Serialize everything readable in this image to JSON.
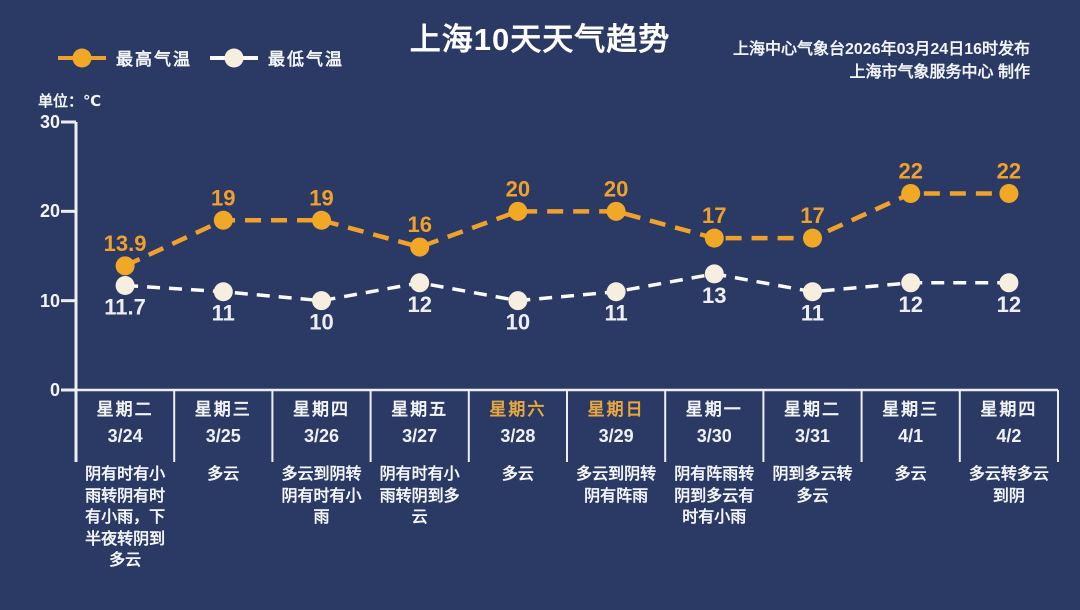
{
  "page": {
    "background": "#2B3A64",
    "title": "上海10天天气趋势",
    "source_line1": "上海中心气象台2026年03月24日16时发布",
    "source_line2": "上海市气象服务中心  制作",
    "unit_label": "单位：℃"
  },
  "legend": {
    "items": [
      {
        "label": "最高气温",
        "line_color": "#F0A12B",
        "marker_color": "#F2A827"
      },
      {
        "label": "最低气温",
        "line_color": "#FAFBFD",
        "marker_color": "#F6EEDE"
      }
    ]
  },
  "chart_data": {
    "type": "line",
    "title": "上海10天天气趋势",
    "categories": [
      "3/24",
      "3/25",
      "3/26",
      "3/27",
      "3/28",
      "3/29",
      "3/30",
      "3/31",
      "4/1",
      "4/2"
    ],
    "series": [
      {
        "name": "最高气温",
        "values": [
          13.9,
          19,
          19,
          16,
          20,
          20,
          17,
          17,
          22,
          22
        ],
        "labels": [
          "13.9",
          "19",
          "19",
          "16",
          "20",
          "20",
          "17",
          "17",
          "22",
          "22"
        ],
        "stroke": "#F0A12B",
        "marker": "#F2A827",
        "dash": "16 10",
        "width": 4.5,
        "label_class": "value-label-max",
        "label_side": "above"
      },
      {
        "name": "最低气温",
        "values": [
          11.7,
          11,
          10,
          12,
          10,
          11,
          13,
          11,
          12,
          12
        ],
        "labels": [
          "11.7",
          "11",
          "10",
          "12",
          "10",
          "11",
          "13",
          "11",
          "12",
          "12"
        ],
        "stroke": "#FAFBFD",
        "marker": "#F6EEDE",
        "dash": "13 9",
        "width": 3.5,
        "label_class": "value-label-min",
        "label_side": "below"
      }
    ],
    "ylabel": "单位：℃",
    "ylim": [
      0,
      30
    ],
    "yticks": [
      30,
      20,
      10,
      0
    ],
    "grid": false,
    "legend_position": "top-left",
    "axis_color": "#ECEFF5"
  },
  "days": [
    {
      "weekday": "星期二",
      "date": "3/24",
      "weekend": false,
      "weather": "阴有时有小\n雨转阴有时\n有小雨，下\n半夜转阴到\n多云"
    },
    {
      "weekday": "星期三",
      "date": "3/25",
      "weekend": false,
      "weather": "多云"
    },
    {
      "weekday": "星期四",
      "date": "3/26",
      "weekend": false,
      "weather": "多云到阴转\n阴有时有小\n雨"
    },
    {
      "weekday": "星期五",
      "date": "3/27",
      "weekend": false,
      "weather": "阴有时有小\n雨转阴到多\n云"
    },
    {
      "weekday": "星期六",
      "date": "3/28",
      "weekend": true,
      "weather": "多云"
    },
    {
      "weekday": "星期日",
      "date": "3/29",
      "weekend": true,
      "weather": "多云到阴转\n阴有阵雨"
    },
    {
      "weekday": "星期一",
      "date": "3/30",
      "weekend": false,
      "weather": "阴有阵雨转\n阴到多云有\n时有小雨"
    },
    {
      "weekday": "星期二",
      "date": "3/31",
      "weekend": false,
      "weather": "阴到多云转\n多云"
    },
    {
      "weekday": "星期三",
      "date": "4/1",
      "weekend": false,
      "weather": "多云"
    },
    {
      "weekday": "星期四",
      "date": "4/2",
      "weekend": false,
      "weather": "多云转多云\n到阴"
    }
  ]
}
